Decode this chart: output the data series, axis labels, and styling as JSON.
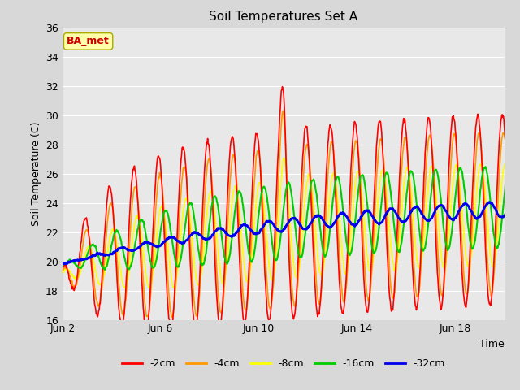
{
  "title": "Soil Temperatures Set A",
  "xlabel": "Time",
  "ylabel": "Soil Temperature (C)",
  "ylim": [
    16,
    36
  ],
  "yticks": [
    16,
    18,
    20,
    22,
    24,
    26,
    28,
    30,
    32,
    34,
    36
  ],
  "fig_bg_color": "#d8d8d8",
  "plot_bg_color": "#e8e8e8",
  "grid_color": "#ffffff",
  "line_colors": {
    "-2cm": "#ff0000",
    "-4cm": "#ff9900",
    "-8cm": "#ffff00",
    "-16cm": "#00cc00",
    "-32cm": "#0000ee"
  },
  "annotation_text": "BA_met",
  "annotation_color": "#cc0000",
  "annotation_bg": "#ffffaa",
  "annotation_edge": "#aaaa00",
  "x_tick_days": [
    2,
    6,
    10,
    14,
    18
  ],
  "x_tick_labels": [
    "Jun 2",
    "Jun 6",
    "Jun 10",
    "Jun 14",
    "Jun 18"
  ]
}
